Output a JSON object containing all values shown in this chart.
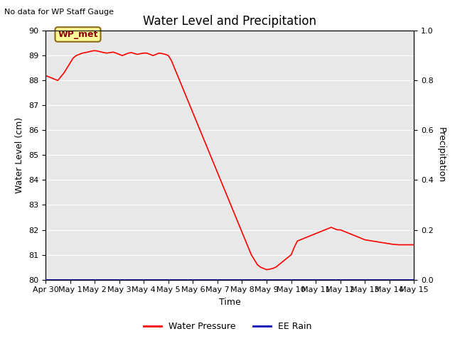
{
  "title": "Water Level and Precipitation",
  "top_left_text": "No data for WP Staff Gauge",
  "ylabel_left": "Water Level (cm)",
  "ylabel_right": "Precipitation",
  "xlabel": "Time",
  "ylim_left": [
    80.0,
    90.0
  ],
  "ylim_right": [
    0.0,
    1.0
  ],
  "yticks_left": [
    80.0,
    81.0,
    82.0,
    83.0,
    84.0,
    85.0,
    86.0,
    87.0,
    88.0,
    89.0,
    90.0
  ],
  "yticks_right": [
    0.0,
    0.2,
    0.4,
    0.6,
    0.8,
    1.0
  ],
  "line_color": "#FF0000",
  "rain_color": "#0000BB",
  "bg_color": "#E8E8E8",
  "annotation_box_facecolor": "#FFFF99",
  "annotation_box_edgecolor": "#8B6914",
  "annotation_text": "WP_met",
  "annotation_text_color": "#8B0000",
  "water_pressure_x": [
    0,
    0.125,
    0.25,
    0.375,
    0.5,
    0.625,
    0.75,
    0.875,
    1.0,
    1.125,
    1.25,
    1.375,
    1.5,
    1.625,
    1.75,
    1.875,
    2.0,
    2.125,
    2.25,
    2.375,
    2.5,
    2.625,
    2.75,
    2.875,
    3.0,
    3.125,
    3.25,
    3.375,
    3.5,
    3.625,
    3.75,
    3.875,
    4.0,
    4.125,
    4.25,
    4.375,
    4.5,
    4.625,
    4.75,
    4.875,
    5.0,
    5.125,
    5.25,
    5.375,
    5.5,
    5.625,
    5.75,
    5.875,
    6.0,
    6.125,
    6.25,
    6.375,
    6.5,
    6.625,
    6.75,
    6.875,
    7.0,
    7.125,
    7.25,
    7.375,
    7.5,
    7.625,
    7.75,
    7.875,
    8.0,
    8.125,
    8.25,
    8.375,
    8.5,
    8.625,
    8.75,
    8.875,
    9.0,
    9.125,
    9.25,
    9.375,
    9.5,
    9.625,
    9.75,
    9.875,
    10.0,
    10.125,
    10.25,
    10.375,
    10.5,
    10.625,
    10.75,
    10.875,
    11.0,
    11.125,
    11.25,
    11.375,
    11.5,
    11.625,
    11.75,
    11.875,
    12.0,
    12.125,
    12.25,
    12.375,
    12.5,
    12.625,
    12.75,
    12.875,
    13.0,
    13.125,
    13.25,
    13.375,
    13.5,
    13.625,
    13.75,
    13.875,
    14.0,
    14.125,
    14.25,
    14.375,
    14.5,
    14.625,
    14.75,
    14.875,
    15.0
  ],
  "water_pressure_y": [
    88.2,
    88.15,
    88.1,
    88.05,
    88.0,
    88.15,
    88.3,
    88.5,
    88.7,
    88.9,
    89.0,
    89.05,
    89.1,
    89.12,
    89.15,
    89.18,
    89.2,
    89.18,
    89.15,
    89.12,
    89.1,
    89.12,
    89.14,
    89.1,
    89.05,
    89.0,
    89.05,
    89.1,
    89.12,
    89.08,
    89.05,
    89.08,
    89.1,
    89.1,
    89.05,
    89.0,
    89.05,
    89.1,
    89.08,
    89.05,
    89.0,
    88.8,
    88.5,
    88.2,
    87.9,
    87.6,
    87.3,
    87.0,
    86.7,
    86.4,
    86.1,
    85.8,
    85.5,
    85.2,
    84.9,
    84.6,
    84.3,
    84.0,
    83.7,
    83.4,
    83.1,
    82.8,
    82.5,
    82.2,
    81.9,
    81.6,
    81.3,
    81.0,
    80.8,
    80.6,
    80.5,
    80.45,
    80.4,
    80.42,
    80.45,
    80.5,
    80.6,
    80.7,
    80.8,
    80.9,
    81.0,
    81.3,
    81.55,
    81.6,
    81.65,
    81.7,
    81.75,
    81.8,
    81.85,
    81.9,
    81.95,
    82.0,
    82.05,
    82.1,
    82.05,
    82.0,
    82.0,
    81.95,
    81.9,
    81.85,
    81.8,
    81.75,
    81.7,
    81.65,
    81.6,
    81.58,
    81.56,
    81.54,
    81.52,
    81.5,
    81.48,
    81.46,
    81.44,
    81.42,
    81.41,
    81.4,
    81.4,
    81.4,
    81.4,
    81.4,
    81.4
  ],
  "ee_rain_y": 0.0,
  "xstart_days": 0,
  "xend_days": 15,
  "xtick_positions": [
    0,
    1,
    2,
    3,
    4,
    5,
    6,
    7,
    8,
    9,
    10,
    11,
    12,
    13,
    14,
    15
  ],
  "xtick_labels": [
    "Apr 30",
    "May 1",
    "May 2",
    "May 3",
    "May 4",
    "May 5",
    "May 6",
    "May 7",
    "May 8",
    "May 9",
    "May 10",
    "May 11",
    "May 12",
    "May 13",
    "May 14",
    "May 15"
  ],
  "legend_labels": [
    "Water Pressure",
    "EE Rain"
  ],
  "legend_colors": [
    "#FF0000",
    "#0000BB"
  ],
  "title_fontsize": 12,
  "axis_label_fontsize": 9,
  "tick_fontsize": 8,
  "top_left_fontsize": 8
}
